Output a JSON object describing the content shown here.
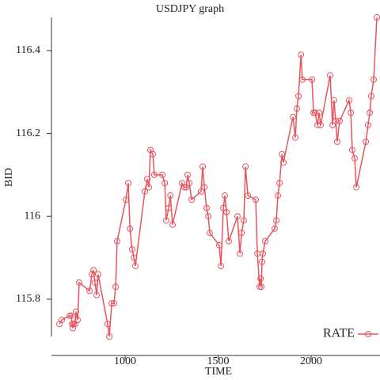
{
  "chart_data": {
    "type": "line",
    "title": "USDJPY graph",
    "x_label": "TIME",
    "y_label": "BID",
    "legend": "bottom-right",
    "marker": "circle",
    "xlim": [
      604,
      2370
    ],
    "ylim": [
      115.71,
      116.48
    ],
    "xticks": [
      1000,
      1500,
      2000
    ],
    "yticks": [
      115.8,
      116,
      116.2,
      116.4
    ],
    "series": [
      {
        "name": "RATE",
        "color": "#e8545e",
        "x": [
          647,
          660,
          702,
          711,
          715,
          719,
          723,
          732,
          736,
          745,
          753,
          809,
          821,
          830,
          838,
          847,
          855,
          906,
          915,
          928,
          940,
          949,
          957,
          1004,
          1017,
          1026,
          1038,
          1047,
          1055,
          1106,
          1119,
          1128,
          1136,
          1149,
          1157,
          1200,
          1213,
          1221,
          1234,
          1243,
          1255,
          1306,
          1319,
          1328,
          1336,
          1345,
          1357,
          1408,
          1417,
          1426,
          1438,
          1447,
          1455,
          1506,
          1515,
          1528,
          1536,
          1545,
          1557,
          1604,
          1617,
          1626,
          1638,
          1647,
          1660,
          1702,
          1711,
          1723,
          1728,
          1732,
          1736,
          1740,
          1753,
          1804,
          1813,
          1821,
          1830,
          1843,
          1851,
          1902,
          1915,
          1923,
          1932,
          1945,
          1953,
          2004,
          2013,
          2021,
          2034,
          2043,
          2051,
          2102,
          2115,
          2123,
          2132,
          2140,
          2153,
          2204,
          2213,
          2221,
          2234,
          2243,
          2294,
          2306,
          2315,
          2323,
          2336,
          2353
        ],
        "values": [
          115.74,
          115.75,
          115.76,
          115.76,
          115.74,
          115.73,
          115.74,
          115.74,
          115.77,
          115.75,
          115.84,
          115.82,
          115.86,
          115.87,
          115.84,
          115.81,
          115.86,
          115.74,
          115.71,
          115.79,
          115.79,
          115.83,
          115.94,
          116.04,
          116.08,
          115.97,
          115.92,
          115.9,
          115.88,
          116.06,
          116.09,
          116.07,
          116.16,
          116.15,
          116.1,
          116.1,
          116.08,
          115.99,
          116.02,
          116.05,
          115.98,
          116.08,
          116.07,
          116.07,
          116.1,
          116.08,
          116.04,
          116.06,
          116.12,
          116.07,
          116.02,
          116.0,
          115.96,
          115.93,
          115.88,
          116.02,
          116.05,
          116.01,
          115.94,
          116.0,
          115.91,
          115.96,
          115.99,
          116.12,
          116.05,
          116.04,
          115.91,
          115.83,
          115.85,
          115.83,
          115.89,
          115.91,
          115.94,
          115.97,
          115.99,
          116.05,
          116.08,
          116.15,
          116.13,
          116.24,
          116.19,
          116.26,
          116.29,
          116.39,
          116.33,
          116.33,
          116.25,
          116.25,
          116.22,
          116.25,
          116.22,
          116.34,
          116.22,
          116.28,
          116.23,
          116.18,
          116.23,
          116.28,
          116.25,
          116.16,
          116.14,
          116.07,
          116.18,
          116.22,
          116.25,
          116.29,
          116.33,
          116.48
        ]
      }
    ]
  }
}
